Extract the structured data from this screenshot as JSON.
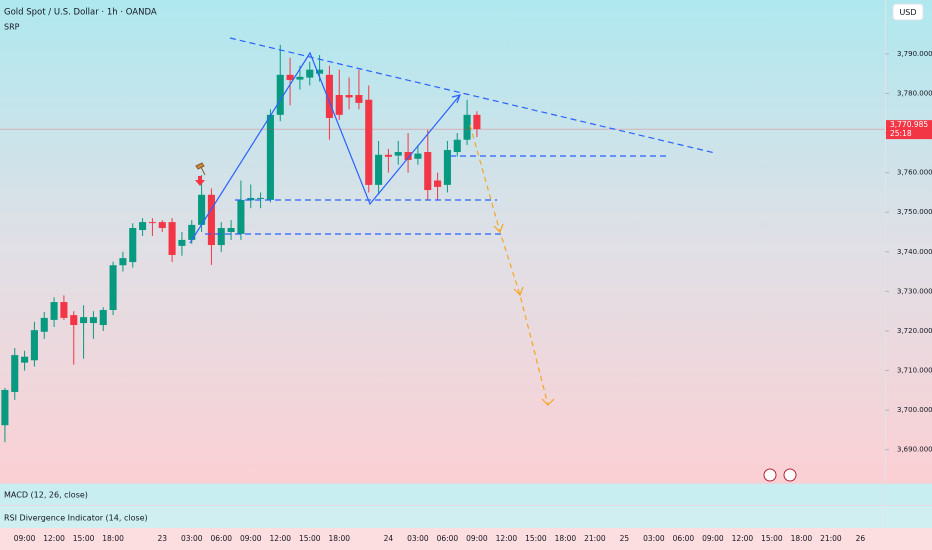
{
  "chart_data": {
    "type": "candlestick",
    "title": "Gold Spot / U.S. Dollar · 1h · OANDA",
    "subtitle": "SRP",
    "currency": "USD",
    "price_tag": "3,770.985",
    "countdown": "25:18",
    "indicators": [
      "MACD (12, 26, close)",
      "RSI Divergence Indicator (14, close)"
    ],
    "up_color": "#089981",
    "down_color": "#f23645",
    "categories": [
      null,
      null,
      "09:00",
      null,
      null,
      "12:00",
      null,
      null,
      "15:00",
      null,
      null,
      "18:00",
      null,
      null,
      null,
      null,
      "23",
      null,
      null,
      "03:00",
      null,
      null,
      "06:00",
      null,
      null,
      "09:00",
      null,
      null,
      "12:00",
      null,
      null,
      "15:00",
      null,
      null,
      "18:00",
      null,
      null,
      null,
      null,
      "24",
      null,
      null,
      "03:00",
      null,
      null,
      "06:00",
      null,
      null,
      "09:00",
      null,
      null,
      "12:00",
      null,
      null,
      "15:00",
      null,
      null,
      "18:00",
      null,
      null,
      "21:00",
      null,
      null,
      "25",
      null,
      null,
      "03:00",
      null,
      null,
      "06:00",
      null,
      null,
      "09:00",
      null,
      null,
      "12:00",
      null,
      null,
      "15:00",
      null,
      null,
      "18:00",
      null,
      null,
      "21:00",
      null,
      null,
      "26",
      null,
      null
    ],
    "open": [
      3696.2,
      3704.6,
      3712,
      3712.6,
      3719.8,
      3722.8,
      3727.3,
      3724,
      3722,
      3722,
      3721.5,
      3725.3,
      3736.6,
      3737.4,
      3745.5,
      3747.5,
      3747.5,
      3747.5,
      3741.5,
      3743,
      3746.8,
      3754.4,
      3741.7,
      3745,
      3744.5,
      3753,
      3753.5,
      3753.1,
      3774.6,
      3784.7,
      3783.5,
      3784,
      3785,
      3784.7,
      3779.6,
      3779.6,
      3779.6,
      3778.4,
      3756.9,
      3764.5,
      3764.3,
      3765.2,
      3763.5,
      3765.2,
      3758,
      3756.9,
      3765.2,
      3768.3,
      3774.6,
      null,
      null,
      null,
      null,
      null,
      null,
      null,
      null,
      null,
      null,
      null,
      null,
      null,
      null,
      null,
      null,
      null,
      null,
      null,
      null,
      null,
      null,
      null,
      null,
      null,
      null,
      null,
      null,
      null,
      null,
      null,
      null,
      null,
      null,
      null,
      null,
      null,
      null,
      null,
      null,
      null
    ],
    "high": [
      3705.6,
      3715.7,
      3715,
      3722.3,
      3724.8,
      3728.5,
      3729,
      3725,
      3726.5,
      3725,
      3726,
      3737.5,
      3740,
      3747.2,
      3748.5,
      3748.5,
      3748,
      3748.5,
      3745,
      3748,
      3759.4,
      3756,
      3747.5,
      3748,
      3758,
      3757,
      3755,
      3776,
      3792.3,
      3789,
      3787,
      3788,
      3789.7,
      3787,
      3786,
      3784,
      3786,
      3782,
      3768,
      3766,
      3768,
      3770,
      3767,
      3770.8,
      3760,
      3768,
      3770,
      3778.4,
      3775.5,
      null,
      null,
      null,
      null,
      null,
      null,
      null,
      null,
      null,
      null,
      null,
      null,
      null,
      null,
      null,
      null,
      null,
      null,
      null,
      null,
      null,
      null,
      null,
      null,
      null,
      null,
      null,
      null,
      null,
      null,
      null,
      null,
      null,
      null,
      null,
      null,
      null,
      null,
      null,
      null,
      null
    ],
    "low": [
      3691.9,
      3702.6,
      3710,
      3711,
      3718,
      3721,
      3722.8,
      3711.5,
      3713,
      3718,
      3720,
      3724,
      3735,
      3736,
      3744,
      3744,
      3745,
      3737.4,
      3739,
      3742,
      3745,
      3736.7,
      3740,
      3743,
      3743,
      3751,
      3751,
      3752.5,
      3773,
      3777,
      3781,
      3782,
      3783,
      3768.3,
      3773.3,
      3776,
      3776,
      3755,
      3754.4,
      3760,
      3762,
      3760,
      3762,
      3753,
      3753,
      3755,
      3764,
      3767,
      3769,
      null,
      null,
      null,
      null,
      null,
      null,
      null,
      null,
      null,
      null,
      null,
      null,
      null,
      null,
      null,
      null,
      null,
      null,
      null,
      null,
      null,
      null,
      null,
      null,
      null,
      null,
      null,
      null,
      null,
      null,
      null,
      null,
      null,
      null,
      null,
      null,
      null,
      null,
      null,
      null,
      null
    ],
    "close": [
      3705.1,
      3713.9,
      3713.5,
      3720.2,
      3723.3,
      3727.3,
      3723.3,
      3721.5,
      3723.5,
      3723.5,
      3725.3,
      3736.6,
      3738.4,
      3746,
      3747.5,
      3747.3,
      3746,
      3739.2,
      3743,
      3746.8,
      3754.4,
      3741.7,
      3746,
      3746,
      3753.1,
      3753.6,
      3753.6,
      3774.6,
      3784.7,
      3783.4,
      3784.2,
      3786,
      3786,
      3773.8,
      3774.6,
      3779,
      3777.6,
      3756.9,
      3764.5,
      3764,
      3765.2,
      3763.2,
      3764.8,
      3755.6,
      3756.4,
      3765.7,
      3768.3,
      3774.6,
      3770.985,
      null,
      null,
      null,
      null,
      null,
      null,
      null,
      null,
      null,
      null,
      null,
      null,
      null,
      null,
      null,
      null,
      null,
      null,
      null,
      null,
      null,
      null,
      null,
      null,
      null,
      null,
      null,
      null,
      null,
      null,
      null,
      null,
      null,
      null,
      null,
      null,
      null,
      null,
      null,
      null,
      null
    ],
    "ylim": [
      3681.6,
      3803.6
    ],
    "yticks": [
      {
        "value": 3690,
        "label": "3,690.000"
      },
      {
        "value": 3700,
        "label": "3,700.000"
      },
      {
        "value": 3710,
        "label": "3,710.000"
      },
      {
        "value": 3720,
        "label": "3,720.000"
      },
      {
        "value": 3730,
        "label": "3,730.000"
      },
      {
        "value": 3740,
        "label": "3,740.000"
      },
      {
        "value": 3750,
        "label": "3,750.000"
      },
      {
        "value": 3760,
        "label": "3,760.000"
      },
      {
        "value": 3770,
        "label": "3,770.000"
      },
      {
        "value": 3780,
        "label": "3,780.000"
      },
      {
        "value": 3790,
        "label": "3,790.000"
      }
    ]
  }
}
